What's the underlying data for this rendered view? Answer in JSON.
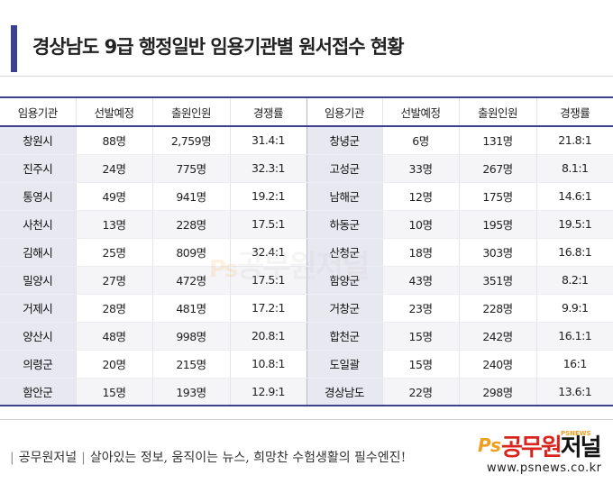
{
  "title": "경상남도 9급 행정일반 임용기관별 원서접수 현황",
  "table": {
    "headers": [
      "임용기관",
      "선발예정",
      "출원인원",
      "경쟁률",
      "임용기관",
      "선발예정",
      "출원인원",
      "경쟁률"
    ],
    "rows": [
      [
        "창원시",
        "88명",
        "2,759명",
        "31.4:1",
        "창녕군",
        "6명",
        "131명",
        "21.8:1"
      ],
      [
        "진주시",
        "24명",
        "775명",
        "32.3:1",
        "고성군",
        "33명",
        "267명",
        "8.1:1"
      ],
      [
        "통영시",
        "49명",
        "941명",
        "19.2:1",
        "남해군",
        "12명",
        "175명",
        "14.6:1"
      ],
      [
        "사천시",
        "13명",
        "228명",
        "17.5:1",
        "하동군",
        "10명",
        "195명",
        "19.5:1"
      ],
      [
        "김해시",
        "25명",
        "809명",
        "32.4:1",
        "산청군",
        "18명",
        "303명",
        "16.8:1"
      ],
      [
        "밀양시",
        "27명",
        "472명",
        "17.5:1",
        "함양군",
        "43명",
        "351명",
        "8.2:1"
      ],
      [
        "거제시",
        "28명",
        "481명",
        "17.2:1",
        "거창군",
        "23명",
        "228명",
        "9.9:1"
      ],
      [
        "양산시",
        "48명",
        "998명",
        "20.8:1",
        "합천군",
        "15명",
        "242명",
        "16.1:1"
      ],
      [
        "의령군",
        "20명",
        "215명",
        "10.8:1",
        "도일괄",
        "15명",
        "240명",
        "16:1"
      ],
      [
        "함안군",
        "15명",
        "193명",
        "12.9:1",
        "경상남도",
        "22명",
        "298명",
        "13.6:1"
      ]
    ]
  },
  "watermark": {
    "ps": "Ps",
    "name": "공무원저널"
  },
  "footer": {
    "brand_label": "공무원저널",
    "slogan": "살아있는 정보, 움직이는 뉴스, 희망찬 수험생활의 필수엔진!",
    "logo_ps": "Ps",
    "logo_name_red": "공무원",
    "logo_name_black": "저널",
    "logo_small": "PSNEWS",
    "url": "www.psnews.co.kr"
  },
  "colors": {
    "accent": "#3d3f8f",
    "region_bg": "#e8e8f0",
    "logo_orange": "#f0a020",
    "logo_red": "#d8261e"
  }
}
